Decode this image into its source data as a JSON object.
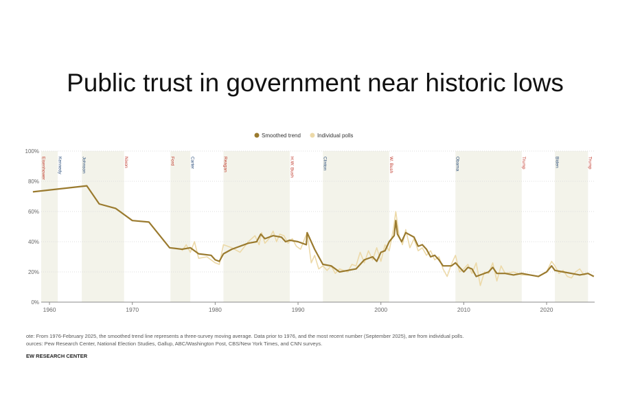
{
  "chart_data": {
    "type": "line",
    "title": "Public trust in government near historic lows",
    "xlim": [
      1959,
      2025.8
    ],
    "ylim": [
      0,
      100
    ],
    "xticks": [
      1960,
      1970,
      1980,
      1990,
      2000,
      2010,
      2020
    ],
    "yticks": [
      {
        "value": 0,
        "label": "0%"
      },
      {
        "value": 20,
        "label": "20%"
      },
      {
        "value": 40,
        "label": "40%"
      },
      {
        "value": 60,
        "label": "60%"
      },
      {
        "value": 80,
        "label": "80%"
      },
      {
        "value": 100,
        "label": "100%"
      }
    ],
    "grid": true,
    "legend": "top",
    "presidents": [
      {
        "name": "Eisenhower",
        "start": 1959,
        "color": "#c0392b"
      },
      {
        "name": "Kennedy",
        "start": 1961,
        "color": "#2c4f7c"
      },
      {
        "name": "Johnson",
        "start": 1963.9,
        "color": "#2c4f7c"
      },
      {
        "name": "Nixon",
        "start": 1969,
        "color": "#c0392b"
      },
      {
        "name": "Ford",
        "start": 1974.6,
        "color": "#c0392b"
      },
      {
        "name": "Carter",
        "start": 1977,
        "color": "#2c4f7c"
      },
      {
        "name": "Reagan",
        "start": 1981,
        "color": "#c0392b"
      },
      {
        "name": "H.W. Bush",
        "start": 1989,
        "color": "#c0392b"
      },
      {
        "name": "Clinton",
        "start": 1993,
        "color": "#2c4f7c"
      },
      {
        "name": "W. Bush",
        "start": 2001,
        "color": "#c0392b"
      },
      {
        "name": "Obama",
        "start": 2009,
        "color": "#2c4f7c"
      },
      {
        "name": "Trump",
        "start": 2017,
        "color": "#c0392b"
      },
      {
        "name": "Biden",
        "start": 2021,
        "color": "#2c4f7c"
      },
      {
        "name": "Trump",
        "start": 2025,
        "color": "#c0392b"
      }
    ],
    "series": [
      {
        "name": "Individual polls",
        "color": "#ecd9a8",
        "x": [
          1976,
          1976.5,
          1977,
          1977.5,
          1978,
          1979,
          1980,
          1980.5,
          1981,
          1982,
          1983,
          1984,
          1984.8,
          1985.3,
          1985.6,
          1986,
          1986.5,
          1987,
          1987.4,
          1987.8,
          1988.3,
          1988.8,
          1989.3,
          1989.8,
          1990.3,
          1990.8,
          1991.1,
          1991.6,
          1992,
          1992.5,
          1993,
          1993.5,
          1994,
          1994.5,
          1995,
          1995.5,
          1996,
          1996.5,
          1997,
          1997.5,
          1998,
          1998.5,
          1999,
          1999.5,
          2000,
          2000.5,
          2001,
          2001.5,
          2001.8,
          2002.2,
          2002.6,
          2003,
          2003.5,
          2004,
          2004.5,
          2005,
          2005.5,
          2006,
          2006.5,
          2007,
          2007.5,
          2008,
          2008.5,
          2009,
          2009.5,
          2010,
          2010.5,
          2011,
          2011.5,
          2012,
          2012.5,
          2013,
          2013.5,
          2014,
          2014.5,
          2015,
          2016,
          2017,
          2018,
          2019,
          2020,
          2020.6,
          2021,
          2021.5,
          2022,
          2022.5,
          2023,
          2023.5,
          2024,
          2024.5,
          2025,
          2025.7
        ],
        "values": [
          34,
          38,
          33,
          40,
          29,
          30,
          26,
          25,
          38,
          36,
          33,
          40,
          44,
          38,
          46,
          39,
          42,
          47,
          40,
          45,
          44,
          39,
          42,
          37,
          35,
          42,
          46,
          26,
          31,
          22,
          24,
          21,
          24,
          19,
          22,
          21,
          20,
          25,
          24,
          33,
          26,
          34,
          28,
          36,
          27,
          38,
          34,
          48,
          60,
          44,
          38,
          48,
          36,
          42,
          34,
          36,
          31,
          34,
          28,
          30,
          22,
          17,
          25,
          31,
          20,
          22,
          25,
          19,
          26,
          11,
          20,
          19,
          26,
          14,
          24,
          19,
          20,
          18,
          18,
          17,
          20,
          27,
          24,
          19,
          21,
          17,
          16,
          20,
          22,
          18,
          19,
          17
        ]
      },
      {
        "name": "Smoothed trend",
        "color": "#9a7a2e",
        "x": [
          1958,
          1964.5,
          1966,
          1968,
          1970,
          1972,
          1974.5,
          1976,
          1977,
          1978,
          1979.5,
          1980,
          1980.5,
          1981,
          1982,
          1984,
          1985,
          1985.5,
          1986,
          1987,
          1988,
          1988.5,
          1989,
          1990,
          1991,
          1991.1,
          1992,
          1993,
          1994,
          1995,
          1996,
          1997,
          1998,
          1999,
          1999.5,
          2000,
          2000.5,
          2001,
          2001.6,
          2001.8,
          2002,
          2002.5,
          2003,
          2004,
          2004.5,
          2005,
          2005.5,
          2006,
          2006.5,
          2007,
          2007.5,
          2008.5,
          2009,
          2009.5,
          2010,
          2010.5,
          2011,
          2011.5,
          2012,
          2013,
          2013.5,
          2014,
          2015,
          2016,
          2017,
          2018,
          2019,
          2020,
          2020.6,
          2021,
          2022,
          2023,
          2024,
          2025,
          2025.7
        ],
        "values": [
          73,
          77,
          65,
          62,
          54,
          53,
          36,
          35,
          36,
          32,
          31,
          28,
          27,
          32,
          35,
          39,
          40,
          45,
          42,
          44,
          43,
          40,
          41,
          40,
          38,
          46,
          35,
          25,
          24,
          20,
          21,
          22,
          28,
          30,
          27,
          33,
          34,
          40,
          44,
          54,
          45,
          40,
          46,
          43,
          37,
          38,
          35,
          30,
          31,
          28,
          24,
          24,
          26,
          23,
          20,
          23,
          22,
          17,
          18,
          20,
          23,
          19,
          19,
          18,
          19,
          18,
          17,
          20,
          24,
          21,
          20,
          19,
          18,
          19,
          17
        ]
      }
    ],
    "notes": [
      "ote: From 1976-February 2025, the smoothed trend line represents a three-survey moving average. Data prior to 1976, and the most recent number (September 2025), are from individual polls.",
      "ources: Pew Research Center, National Election Studies, Gallup, ABC/Washington Post, CBS/New York Times, and CNN surveys."
    ],
    "source": "EW RESEARCH CENTER"
  }
}
